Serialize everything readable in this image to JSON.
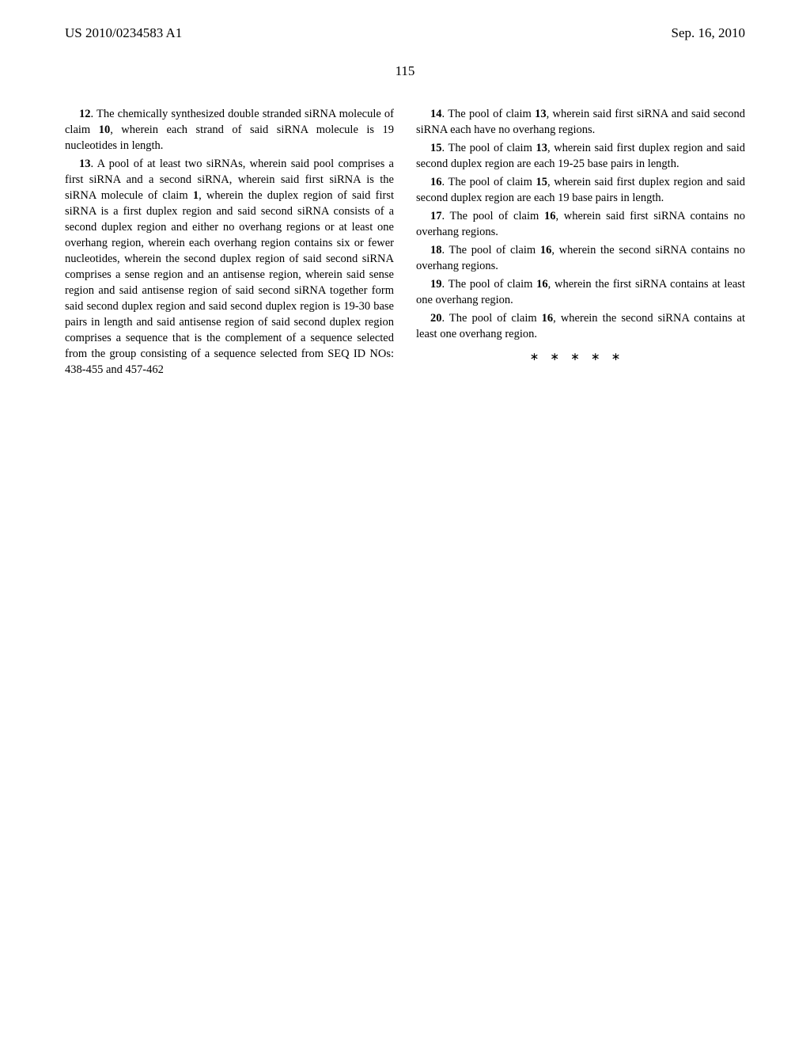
{
  "header": {
    "pub_number": "US 2010/0234583 A1",
    "pub_date": "Sep. 16, 2010"
  },
  "page_number": "115",
  "left_col": {
    "c12_num": "12",
    "c12_text": ". The chemically synthesized double stranded siRNA molecule of claim ",
    "c12_ref": "10",
    "c12_tail": ", wherein each strand of said siRNA molecule is 19 nucleotides in length.",
    "c13_num": "13",
    "c13_text": ". A pool of at least two siRNAs, wherein said pool comprises a first siRNA and a second siRNA, wherein said first siRNA is the siRNA molecule of claim ",
    "c13_ref": "1",
    "c13_tail": ", wherein the duplex region of said first siRNA is a first duplex region and said second siRNA consists of a second duplex region and either no overhang regions or at least one overhang region, wherein each overhang region contains six or fewer nucleotides, wherein the second duplex region of said second siRNA comprises a sense region and an antisense region, wherein said sense region and said antisense region of said second siRNA together form said second duplex region and said second duplex region is 19-30 base pairs in length and said antisense region of said second duplex region comprises a sequence that is the complement of a sequence selected from the group consisting of a sequence selected from SEQ ID NOs: 438-455 and 457-462"
  },
  "right_col": {
    "c14_num": "14",
    "c14_text": ". The pool of claim ",
    "c14_ref": "13",
    "c14_tail": ", wherein said first siRNA and said second siRNA each have no overhang regions.",
    "c15_num": "15",
    "c15_text": ". The pool of claim ",
    "c15_ref": "13",
    "c15_tail": ", wherein said first duplex region and said second duplex region are each 19-25 base pairs in length.",
    "c16_num": "16",
    "c16_text": ". The pool of claim ",
    "c16_ref": "15",
    "c16_tail": ", wherein said first duplex region and said second duplex region are each 19 base pairs in length.",
    "c17_num": "17",
    "c17_text": ". The pool of claim ",
    "c17_ref": "16",
    "c17_tail": ", wherein said first siRNA contains no overhang regions.",
    "c18_num": "18",
    "c18_text": ". The pool of claim ",
    "c18_ref": "16",
    "c18_tail": ", wherein the second siRNA contains no overhang regions.",
    "c19_num": "19",
    "c19_text": ". The pool of claim ",
    "c19_ref": "16",
    "c19_tail": ", wherein the first siRNA contains at least one overhang region.",
    "c20_num": "20",
    "c20_text": ". The pool of claim ",
    "c20_ref": "16",
    "c20_tail": ", wherein the second siRNA contains at least one overhang region."
  },
  "end_marks": "∗∗∗∗∗"
}
